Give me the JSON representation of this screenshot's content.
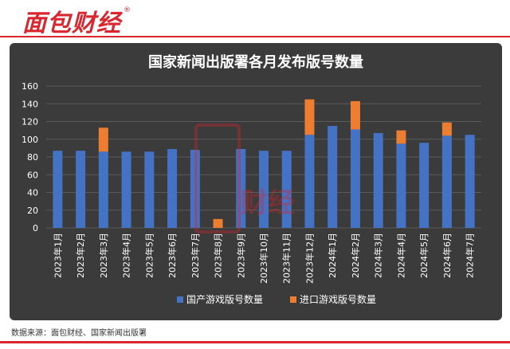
{
  "brand": {
    "logo_text": "面包财经",
    "reg_mark": "®"
  },
  "footer": {
    "source": "数据来源：面包财经、国家新闻出版署"
  },
  "chart_data": {
    "type": "bar",
    "stacked": true,
    "title": "国家新闻出版署各月发布版号数量",
    "categories": [
      "2023年1月",
      "2023年2月",
      "2023年3月",
      "2023年4月",
      "2023年5月",
      "2023年6月",
      "2023年7月",
      "2023年8月",
      "2023年9月",
      "2023年10月",
      "2023年11月",
      "2023年12月",
      "2024年1月",
      "2024年2月",
      "2024年3月",
      "2024年4月",
      "2024年5月",
      "2024年6月",
      "2024年7月"
    ],
    "series": [
      {
        "name": "国产游戏版号数量",
        "color": "#4472c4",
        "values": [
          87,
          87,
          86,
          86,
          86,
          89,
          88,
          0,
          89,
          87,
          87,
          105,
          115,
          111,
          107,
          95,
          96,
          104,
          105
        ]
      },
      {
        "name": "进口游戏版号数量",
        "color": "#ed7d31",
        "values": [
          0,
          0,
          27,
          0,
          0,
          0,
          0,
          10,
          0,
          0,
          0,
          40,
          0,
          32,
          0,
          15,
          0,
          15,
          0
        ]
      }
    ],
    "ylim": [
      0,
      160
    ],
    "yticks": [
      0,
      20,
      40,
      60,
      80,
      100,
      120,
      140,
      160
    ],
    "grid": true,
    "legend": "bottom"
  }
}
